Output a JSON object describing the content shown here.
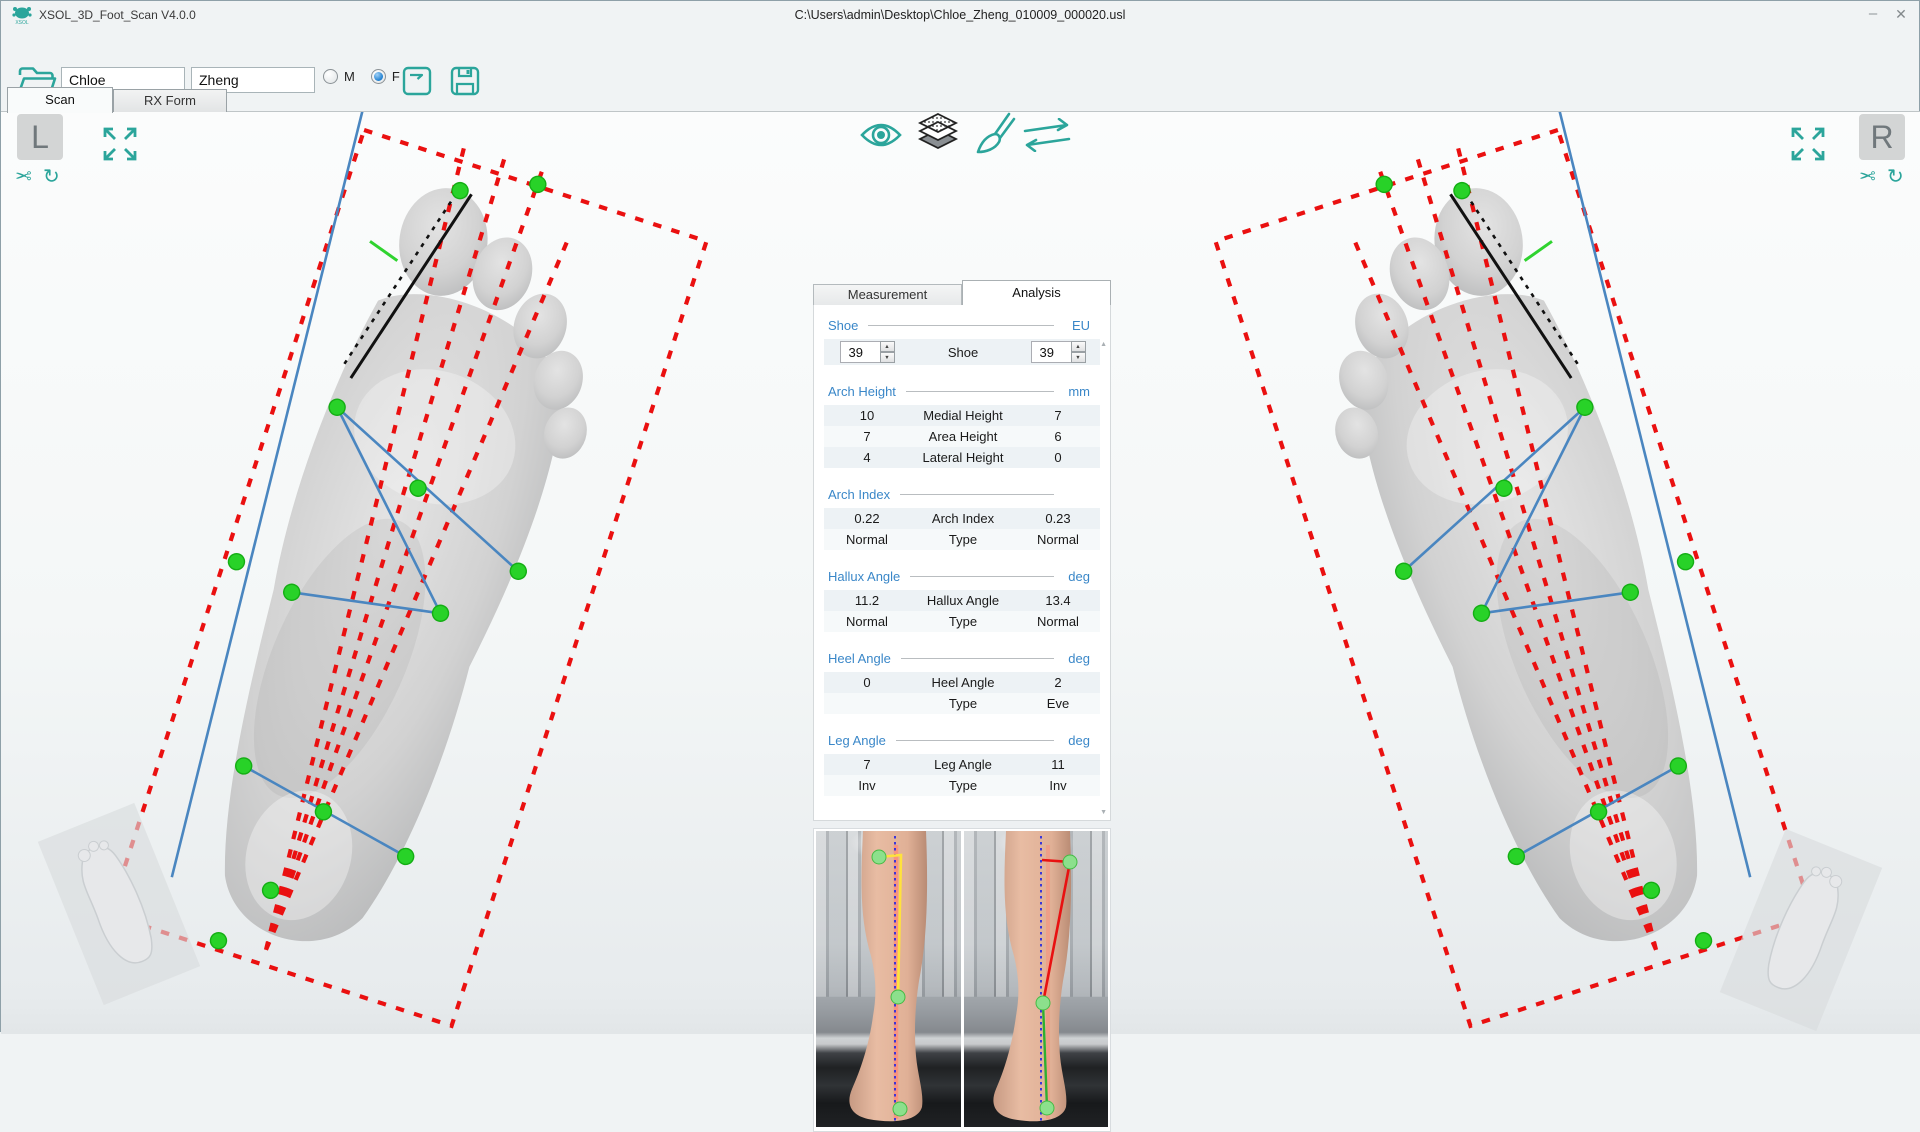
{
  "window": {
    "title": "XSOL_3D_Foot_Scan V4.0.0",
    "file_path": "C:\\Users\\admin\\Desktop\\Chloe_Zheng_010009_000020.usl",
    "minimize_glyph": "–",
    "close_glyph": "✕"
  },
  "toolbar": {
    "first_name": "Chloe",
    "last_name": "Zheng",
    "gender": {
      "male_label": "M",
      "female_label": "F",
      "selected": "F"
    }
  },
  "main_tabs": [
    {
      "label": "Scan",
      "active": true
    },
    {
      "label": "RX Form",
      "active": false
    }
  ],
  "left_view": {
    "label": "L"
  },
  "right_view": {
    "label": "R"
  },
  "view_icons": {
    "scissors_glyph": "✂",
    "reset_glyph": "↻"
  },
  "analysis_panel": {
    "tabs": [
      {
        "label": "Measurement",
        "active": false
      },
      {
        "label": "Analysis",
        "active": true
      }
    ],
    "shoe": {
      "section": "Shoe",
      "unit": "EU",
      "left_value": "39",
      "row_label": "Shoe",
      "right_value": "39",
      "spin_up_glyph": "▲",
      "spin_down_glyph": "▼"
    },
    "scroll_up_glyph": "▲",
    "scroll_down_glyph": "▼",
    "sections": [
      {
        "title": "Arch Height",
        "unit": "mm",
        "rows": [
          [
            "10",
            "Medial Height",
            "7"
          ],
          [
            "7",
            "Area Height",
            "6"
          ],
          [
            "4",
            "Lateral Height",
            "0"
          ]
        ]
      },
      {
        "title": "Arch Index",
        "unit": "",
        "rows": [
          [
            "0.22",
            "Arch Index",
            "0.23"
          ],
          [
            "Normal",
            "Type",
            "Normal"
          ]
        ]
      },
      {
        "title": "Hallux Angle",
        "unit": "deg",
        "rows": [
          [
            "11.2",
            "Hallux Angle",
            "13.4"
          ],
          [
            "Normal",
            "Type",
            "Normal"
          ]
        ]
      },
      {
        "title": "Heel Angle",
        "unit": "deg",
        "rows": [
          [
            "0",
            "Heel Angle",
            "2"
          ],
          [
            "",
            "Type",
            "Eve"
          ]
        ]
      },
      {
        "title": "Leg Angle",
        "unit": "deg",
        "rows": [
          [
            "7",
            "Leg Angle",
            "11"
          ],
          [
            "Inv",
            "Type",
            "Inv"
          ]
        ]
      }
    ]
  },
  "colors": {
    "accent_teal": "#2ba59b",
    "section_blue": "#3a87c8",
    "box_red": "#ea1010",
    "measure_blue": "#4a86c0",
    "landmark_green": "#28d228",
    "photo_axis_blue": "#2a2ae0",
    "photo_left_line_yellow": "#ffe23c",
    "photo_right_line_red": "#e81111"
  }
}
